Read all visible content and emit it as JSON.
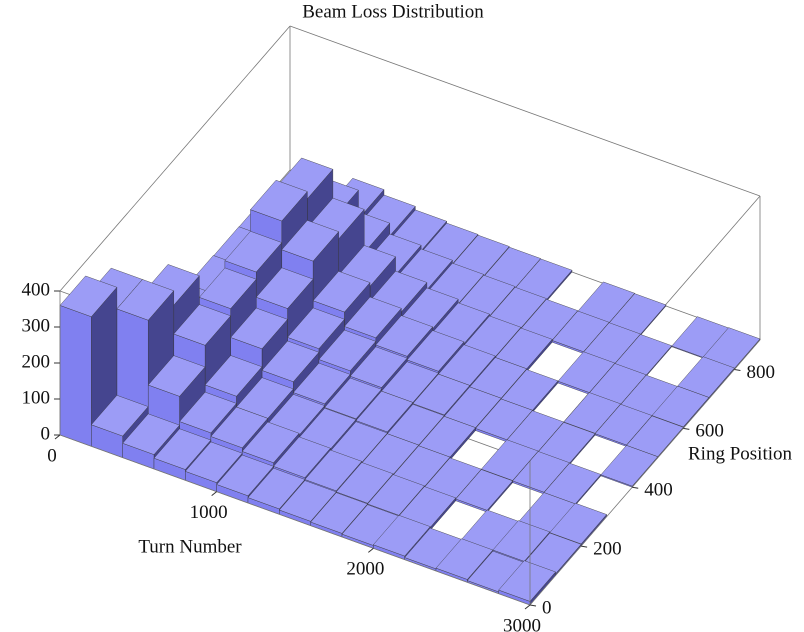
{
  "chart_data": {
    "type": "histogram3d",
    "title": "Beam Loss Distribution",
    "x_label": "Turn Number",
    "y_label": "Ring Position",
    "xbins": [
      0,
      200,
      400,
      600,
      800,
      1000,
      1200,
      1400,
      1600,
      1800,
      2000,
      2200,
      2400,
      2600,
      2800,
      3000
    ],
    "ybins": [
      0,
      100,
      200,
      300,
      400,
      500,
      600,
      700,
      800,
      900
    ],
    "values": [
      [
        360,
        60,
        40,
        30,
        25,
        20,
        15,
        12,
        10,
        8,
        10,
        6,
        8,
        5,
        10
      ],
      [
        300,
        300,
        120,
        50,
        40,
        30,
        20,
        15,
        12,
        10,
        8,
        0,
        6,
        8,
        5
      ],
      [
        20,
        260,
        180,
        70,
        40,
        25,
        18,
        12,
        10,
        8,
        6,
        5,
        0,
        4,
        6
      ],
      [
        15,
        40,
        200,
        120,
        60,
        30,
        20,
        15,
        10,
        8,
        0,
        6,
        5,
        4,
        0
      ],
      [
        10,
        30,
        220,
        150,
        70,
        40,
        25,
        15,
        12,
        8,
        6,
        5,
        4,
        0,
        3
      ],
      [
        8,
        25,
        280,
        200,
        90,
        50,
        30,
        20,
        12,
        8,
        6,
        0,
        5,
        4,
        3
      ],
      [
        6,
        20,
        260,
        180,
        80,
        40,
        25,
        15,
        10,
        8,
        0,
        5,
        4,
        3,
        4
      ],
      [
        5,
        15,
        120,
        60,
        30,
        20,
        12,
        10,
        8,
        6,
        5,
        4,
        3,
        0,
        4
      ],
      [
        0,
        10,
        40,
        25,
        15,
        10,
        8,
        6,
        5,
        0,
        4,
        3,
        0,
        2,
        3
      ]
    ],
    "color": "#8080f0",
    "xlim": [
      0,
      3000
    ],
    "xticks": [
      0,
      1000,
      2000,
      3000
    ],
    "ylim": [
      0,
      900
    ],
    "yticks": [
      0,
      200,
      400,
      600,
      800
    ],
    "zlim": [
      0,
      400
    ],
    "zticks": [
      0,
      100,
      200,
      300,
      400
    ]
  }
}
